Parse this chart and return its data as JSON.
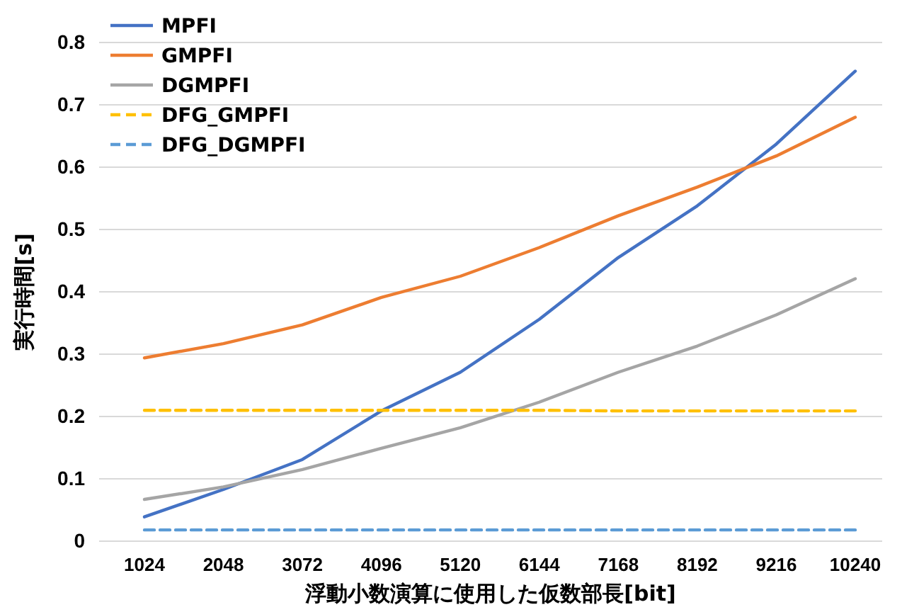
{
  "chart_data": {
    "type": "line",
    "xlabel": "浮動小数演算に使用した仮数部長[bit]",
    "ylabel": "実行時間[s]",
    "categories": [
      "1024",
      "2048",
      "3072",
      "4096",
      "5120",
      "6144",
      "7168",
      "8192",
      "9216",
      "10240"
    ],
    "series": [
      {
        "name": "MPFI",
        "color": "#4472c4",
        "line_style": "solid",
        "values": [
          0.039,
          0.083,
          0.131,
          0.209,
          0.271,
          0.356,
          0.455,
          0.538,
          0.637,
          0.754
        ]
      },
      {
        "name": "GMPFI",
        "color": "#ed7d31",
        "line_style": "solid",
        "values": [
          0.294,
          0.317,
          0.347,
          0.391,
          0.425,
          0.471,
          0.522,
          0.568,
          0.618,
          0.68
        ]
      },
      {
        "name": "DGMPFI",
        "color": "#a5a5a5",
        "line_style": "solid",
        "values": [
          0.067,
          0.087,
          0.115,
          0.149,
          0.182,
          0.223,
          0.271,
          0.313,
          0.363,
          0.421
        ]
      },
      {
        "name": "DFG_GMPFI",
        "color": "#ffc000",
        "line_style": "dashed",
        "values": [
          0.21,
          0.21,
          0.21,
          0.21,
          0.21,
          0.21,
          0.209,
          0.209,
          0.209,
          0.209
        ]
      },
      {
        "name": "DFG_DGMPFI",
        "color": "#5b9bd5",
        "line_style": "dashed",
        "values": [
          0.018,
          0.018,
          0.018,
          0.018,
          0.018,
          0.018,
          0.018,
          0.018,
          0.018,
          0.018
        ]
      }
    ],
    "ylim": [
      0,
      0.8
    ],
    "yticks": [
      0,
      0.1,
      0.2,
      0.3,
      0.4,
      0.5,
      0.6,
      0.7,
      0.8
    ],
    "grid": "y",
    "legend": "top left",
    "marker": "none"
  }
}
